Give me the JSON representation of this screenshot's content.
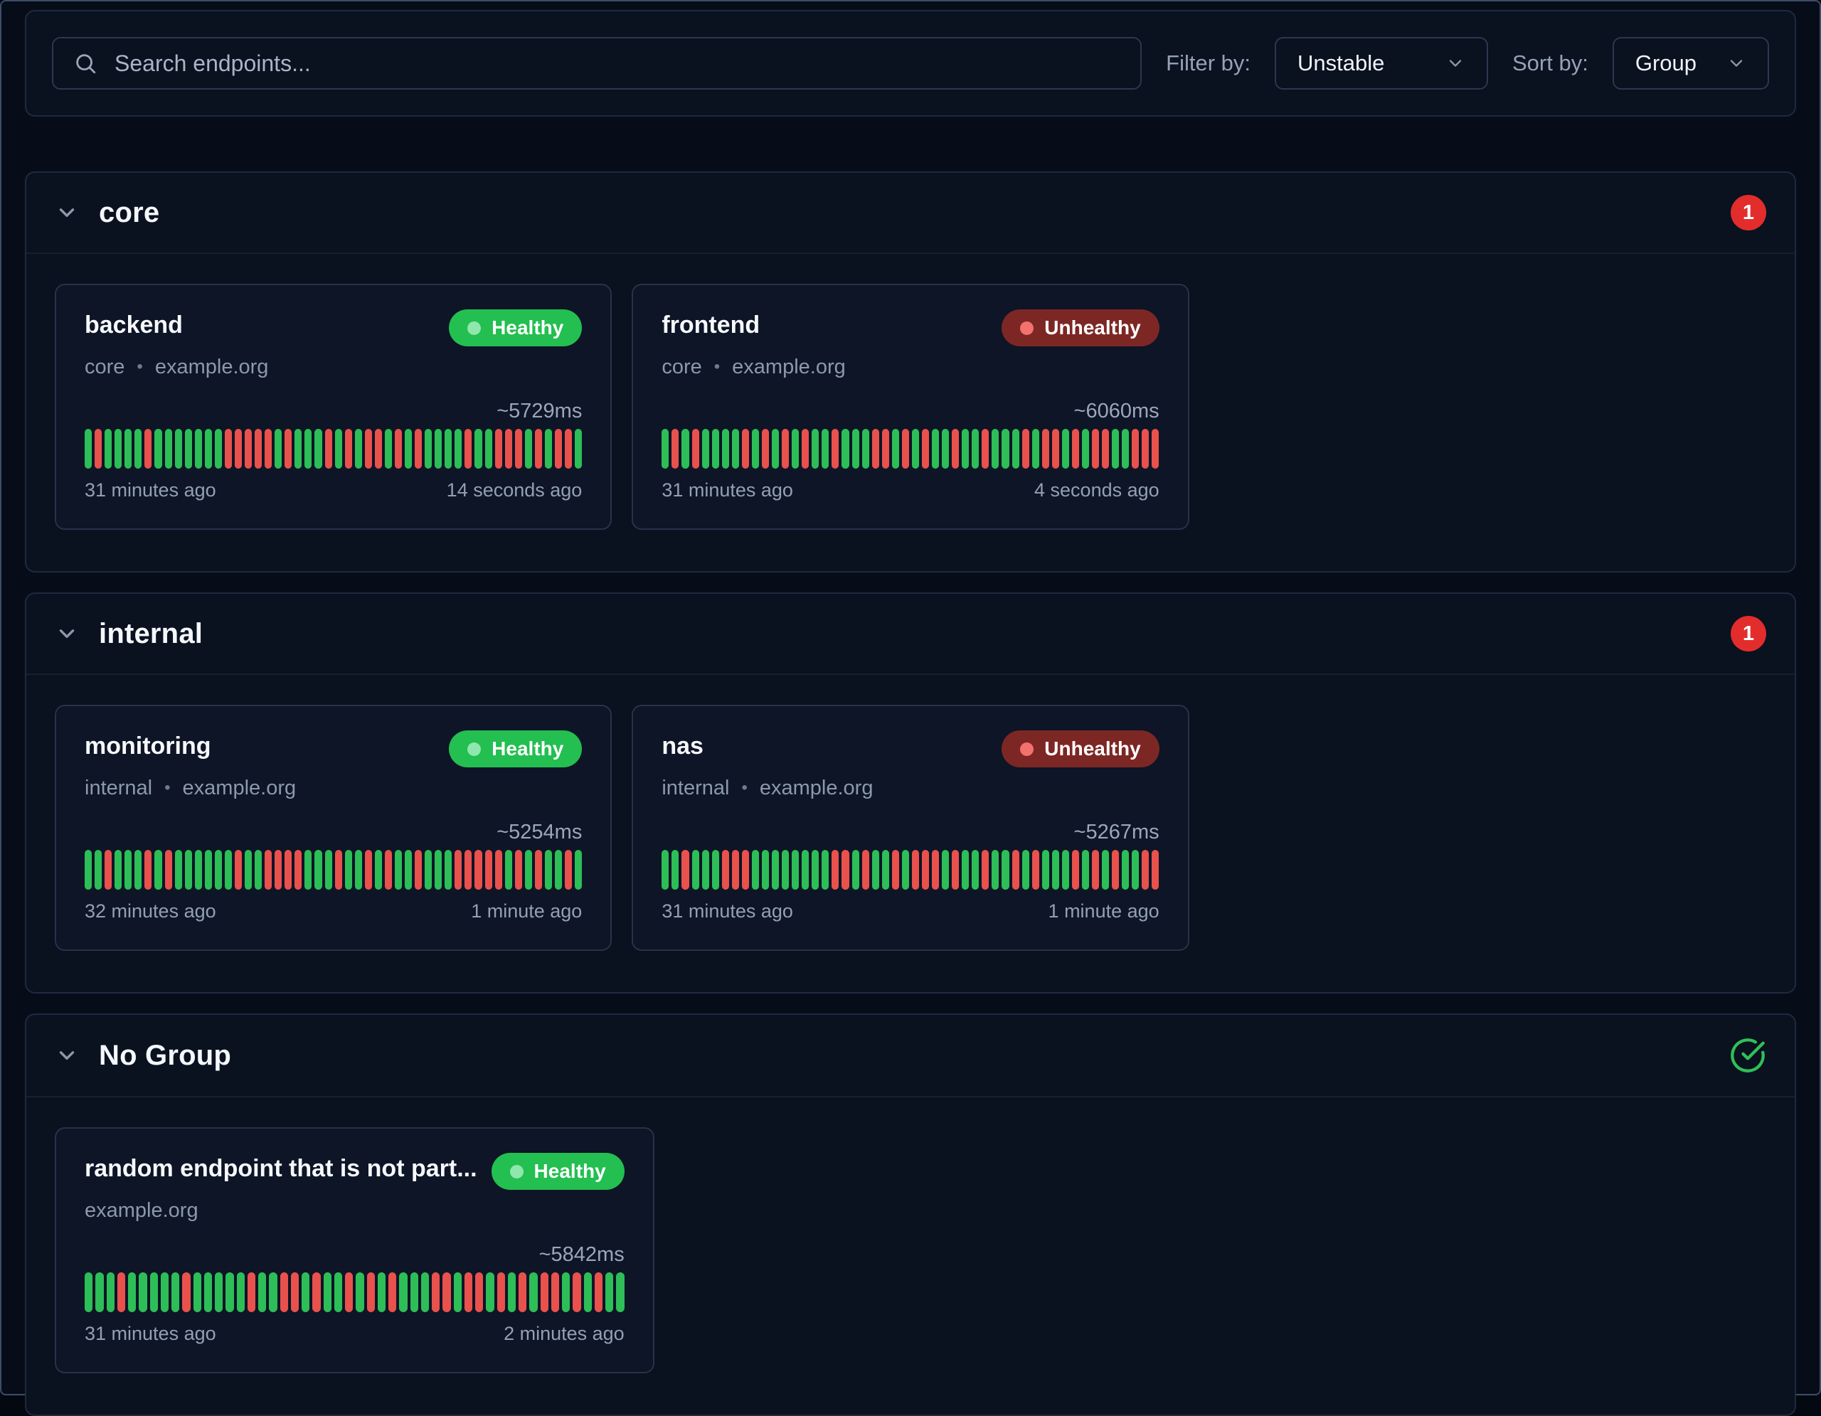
{
  "toolbar": {
    "search_placeholder": "Search endpoints...",
    "search_value": "",
    "filter_label": "Filter by:",
    "filter_value": "Unstable",
    "sort_label": "Sort by:",
    "sort_value": "Group"
  },
  "meta_separator": "•",
  "status_colors": {
    "healthy_badge": "#23bf50",
    "unhealthy_badge": "#7d2725",
    "bar_success": "#2dbe57",
    "bar_failure": "#e9514d",
    "count_badge": "#e22d2c",
    "ok_check": "#2fc058"
  },
  "groups": [
    {
      "name": "core",
      "count_badge": "1",
      "endpoints": [
        {
          "name": "backend",
          "status": "Healthy",
          "group": "core",
          "host": "example.org",
          "avg_response": "~5729ms",
          "from": "31 minutes ago",
          "to": "14 seconds ago",
          "history": "GRGGGGRGGGGGGGRRRRRGRGGGRGRGRRGRGRGGGGRGGRRRGRGRRG"
        },
        {
          "name": "frontend",
          "status": "Unhealthy",
          "group": "core",
          "host": "example.org",
          "avg_response": "~6060ms",
          "from": "31 minutes ago",
          "to": "4 seconds ago",
          "history": "GRGRGGGGRGRGRGRGGRGGGRRGRGRGGRGGRGGGRGRRGRGRRGGRRR"
        }
      ]
    },
    {
      "name": "internal",
      "count_badge": "1",
      "endpoints": [
        {
          "name": "monitoring",
          "status": "Healthy",
          "group": "internal",
          "host": "example.org",
          "avg_response": "~5254ms",
          "from": "32 minutes ago",
          "to": "1 minute ago",
          "history": "GGRGGGRGRGGGGGGRGGRRRRGGGRGGRGRGGRGGGRRRRRGRGRGGRG"
        },
        {
          "name": "nas",
          "status": "Unhealthy",
          "group": "internal",
          "host": "example.org",
          "avg_response": "~5267ms",
          "from": "31 minutes ago",
          "to": "1 minute ago",
          "history": "GGRGGGRRRGGGGGGGGRRGRGGRGRRRGRGGRGGRGRGGGRGRGRGGRR"
        }
      ]
    },
    {
      "name": "No Group",
      "all_ok": true,
      "endpoints": [
        {
          "name": "random endpoint that is not part...",
          "status": "Healthy",
          "group": "",
          "host": "example.org",
          "avg_response": "~5842ms",
          "from": "31 minutes ago",
          "to": "2 minutes ago",
          "history": "GGGRGGGGGRGGGGGRGGRRGRGGRGRGRGGGRRGRRGRGRGRRGRGRGG"
        }
      ]
    }
  ]
}
